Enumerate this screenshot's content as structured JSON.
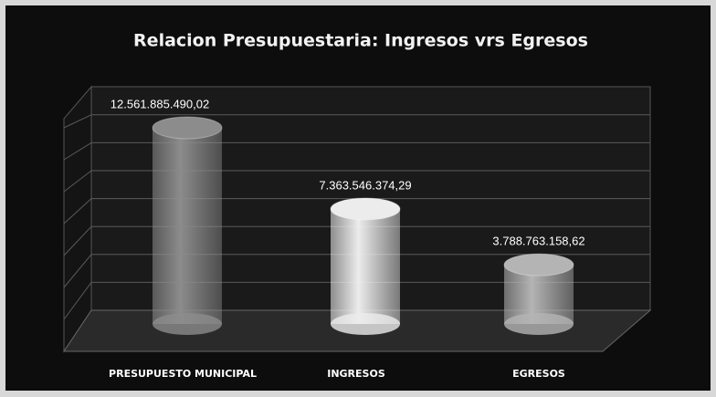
{
  "chart_data": {
    "type": "bar3d",
    "title": "Relacion Presupuestaria: Ingresos vrs Egresos",
    "categories": [
      "PRESUPUESTO MUNICIPAL",
      "INGRESOS",
      "EGRESOS"
    ],
    "values": [
      12561885490.02,
      7363546374.29,
      3788763158.62
    ],
    "value_labels": [
      "12.561.885.490,02",
      "7.363.546.374,29",
      "3.788.763.158,62"
    ],
    "colors": [
      "#8c8c8c",
      "#ececec",
      "#b4b4b4"
    ],
    "grid": true
  }
}
